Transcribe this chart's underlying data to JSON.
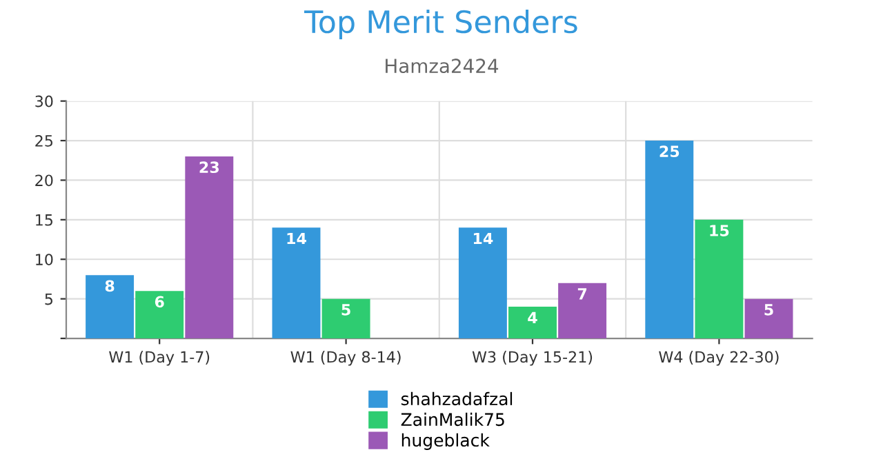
{
  "chart_data": {
    "type": "bar",
    "title": "Top Merit Senders",
    "subtitle": "Hamza2424",
    "categories": [
      "W1 (Day 1-7)",
      "W1 (Day 8-14)",
      "W3 (Day 15-21)",
      "W4 (Day 22-30)"
    ],
    "series": [
      {
        "name": "shahzadafzal",
        "color": "#3498db",
        "values": [
          8,
          14,
          14,
          25
        ]
      },
      {
        "name": "ZainMalik75",
        "color": "#2ecc71",
        "values": [
          6,
          5,
          4,
          15
        ]
      },
      {
        "name": "hugeblack",
        "color": "#9b59b6",
        "values": [
          23,
          null,
          7,
          5
        ]
      }
    ],
    "ylim": [
      0,
      30
    ],
    "yticks": [
      {
        "value": 0,
        "label": null
      },
      5,
      10,
      15,
      20,
      25,
      30
    ],
    "grid": true,
    "legend": "bottom",
    "data_labels": true
  }
}
